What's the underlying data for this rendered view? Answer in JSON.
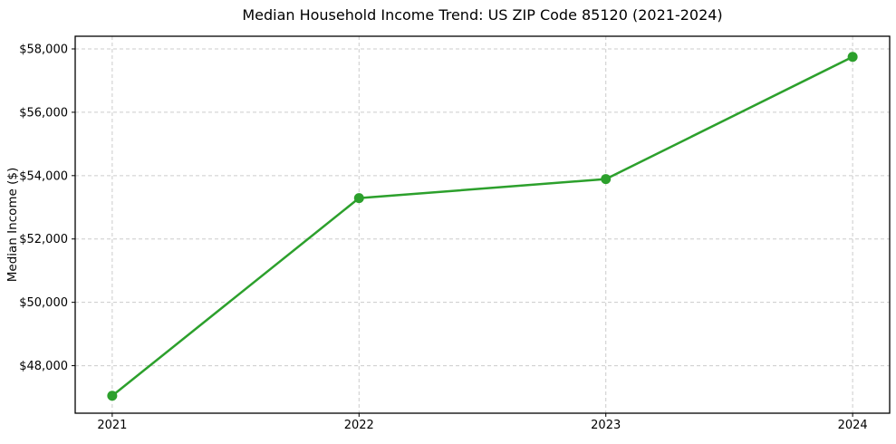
{
  "chart_data": {
    "type": "line",
    "title": "Median Household Income Trend: US ZIP Code 85120 (2021-2024)",
    "xlabel": "",
    "ylabel": "Median Income ($)",
    "x": [
      2021,
      2022,
      2023,
      2024
    ],
    "x_tick_labels": [
      "2021",
      "2022",
      "2023",
      "2024"
    ],
    "series": [
      {
        "name": "median-household-income",
        "values": [
          47050,
          53290,
          53890,
          57750
        ],
        "color": "#2ca02c",
        "marker": "circle",
        "marker_radius": 5.5,
        "line_width": 2.5
      }
    ],
    "xlim": [
      2020.85,
      2024.15
    ],
    "ylim": [
      46500,
      58400
    ],
    "yticks": [
      48000,
      50000,
      52000,
      54000,
      56000,
      58000
    ],
    "ytick_labels": [
      "$48,000",
      "$50,000",
      "$52,000",
      "$54,000",
      "$56,000",
      "$58,000"
    ],
    "grid": {
      "visible": true,
      "axis": "both",
      "linestyle": "dashed",
      "color": "#cccccc"
    },
    "colors": {
      "background": "#ffffff",
      "axes_border": "#000000",
      "tick_text": "#000000",
      "title_text": "#000000"
    }
  }
}
